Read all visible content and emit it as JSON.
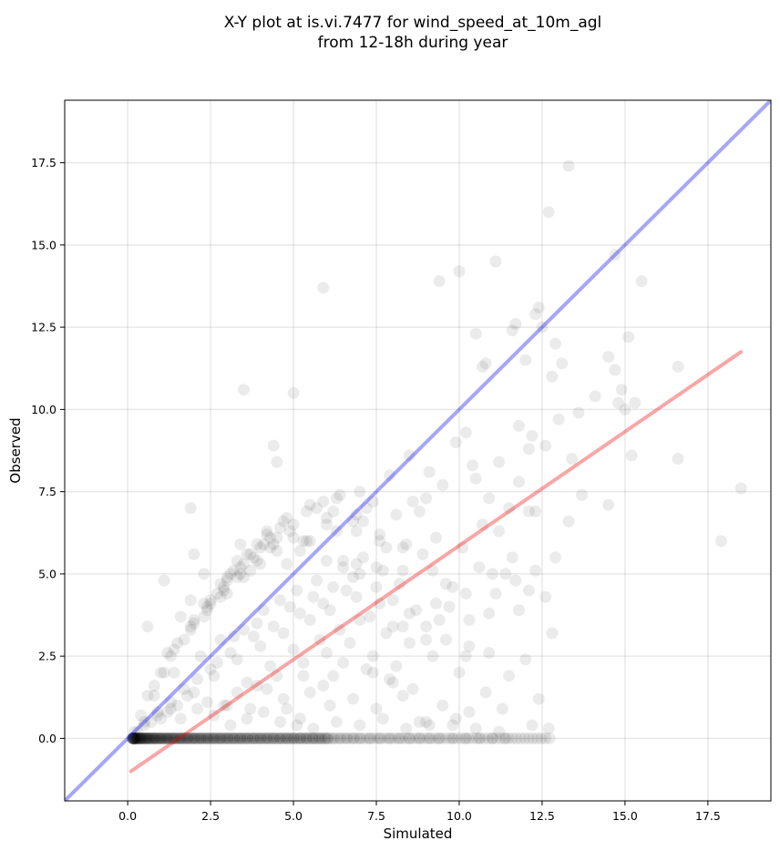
{
  "chart_data": {
    "type": "scatter",
    "title": "X-Y plot at is.vi.7477 for wind_speed_at_10m_agl",
    "subtitle": "from 12-18h during year",
    "xlabel": "Simulated",
    "ylabel": "Observed",
    "xlim": [
      -1.9,
      19.4
    ],
    "ylim": [
      -1.9,
      19.4
    ],
    "xticks": [
      "0.0",
      "2.5",
      "5.0",
      "7.5",
      "10.0",
      "12.5",
      "15.0",
      "17.5"
    ],
    "yticks": [
      "0.0",
      "2.5",
      "5.0",
      "7.5",
      "10.0",
      "12.5",
      "15.0",
      "17.5"
    ],
    "grid": true,
    "colors": {
      "points": "#000000",
      "identity_line": "#0000ee",
      "fit_line": "#ee0000"
    },
    "identity_line": {
      "x": [
        -1.9,
        19.4
      ],
      "y": [
        -1.9,
        19.4
      ]
    },
    "fit_line": {
      "x": [
        0.1,
        18.5
      ],
      "y": [
        -1.0,
        11.75
      ]
    },
    "points": {
      "x": [
        13.3,
        12.7,
        14.7,
        15.5,
        10.0,
        11.1,
        12.4,
        9.4,
        11.7,
        12.3,
        12.5,
        12.9,
        10.5,
        11.6,
        13.1,
        12.8,
        14.5,
        15.1,
        16.6,
        14.9,
        15.3,
        15.0,
        14.1,
        13.6,
        13.0,
        10.8,
        10.7,
        12.0,
        12.2,
        12.6,
        13.4,
        13.7,
        14.5,
        15.2,
        14.8,
        16.6,
        18.5,
        17.9,
        14.7,
        12.1,
        11.8,
        10.2,
        11.2,
        11.8,
        13.3,
        12.3,
        11.6,
        11.7,
        12.1,
        9.7,
        9.3,
        10.3,
        10.9,
        11.1,
        12.3,
        12.6,
        12.8,
        10.2,
        9.6,
        10.9,
        3.5,
        5.9,
        5.0,
        4.4,
        4.5,
        1.9,
        2.0,
        1.1,
        0.6,
        1.9,
        2.3,
        3.0,
        3.4,
        4.2,
        6.0,
        7.0,
        7.4,
        7.9,
        8.5,
        9.1,
        9.5,
        9.9,
        10.4,
        10.9,
        11.2,
        11.5,
        12.1,
        6.9,
        7.6,
        8.3,
        8.8,
        9.2,
        9.8,
        11.4,
        12.9,
        10.7,
        10.5,
        9.0,
        11.8,
        10.3,
        12.4,
        1.2,
        1.6,
        2.4,
        2.9,
        3.7,
        4.8,
        5.4,
        6.3,
        6.8,
        7.2,
        8.1,
        8.6,
        9.3,
        10.1,
        10.6,
        11.0,
        2.1,
        2.7,
        3.2,
        3.9,
        4.6,
        5.1,
        5.7,
        6.5,
        7.1,
        7.7,
        8.4,
        8.9,
        9.6,
        10.2,
        0.4,
        0.8,
        1.4,
        2.2,
        2.8,
        3.5,
        4.1,
        4.9,
        5.6,
        6.2,
        6.8,
        7.5,
        8.2,
        8.7,
        9.4,
        0.2,
        0.5,
        0.9,
        1.3,
        1.7,
        2.5,
        3.1,
        3.8,
        4.4,
        5.2,
        5.9,
        6.6,
        7.3,
        8.0,
        1.0,
        1.5,
        2.0,
        2.6,
        3.3,
        4.0,
        4.7,
        5.5,
        6.1,
        6.9,
        7.6,
        8.3,
        9.0,
        3.6,
        4.3,
        5.0,
        5.8,
        6.4,
        7.0,
        7.8,
        8.5,
        9.2,
        10.0,
        3.0,
        3.9,
        4.5,
        5.3,
        6.0,
        6.7,
        7.4,
        8.1,
        4.8,
        5.5,
        6.2,
        7.2,
        7.9,
        8.6,
        5.2,
        6.1,
        6.8,
        7.5,
        8.3,
        9.5,
        10.3,
        11.3,
        10.8,
        11.5,
        12.0,
        9.9,
        9.1,
        8.8,
        4.7,
        5.9,
        5.3,
        6.5,
        7.4,
        8.0,
        3.7,
        4.2,
        2.9,
        3.3,
        2.4,
        1.8,
        1.3,
        0.9,
        0.5,
        0.3,
        0.7,
        1.2,
        1.6,
        2.1,
        2.6,
        3.1,
        3.6,
        4.1,
        4.6,
        5.1,
        5.6,
        6.3,
        7.0,
        7.7,
        8.4,
        9.0,
        9.8,
        10.5,
        11.2,
        12.2,
        12.7,
        0.2,
        0.4,
        0.6,
        0.8,
        1.0,
        1.2,
        1.4,
        1.6,
        1.8,
        2.0,
        2.2,
        2.4,
        2.6,
        2.8,
        3.0,
        3.2,
        3.4,
        3.6,
        3.8,
        4.0,
        4.2,
        4.4,
        4.6,
        4.8,
        5.0,
        5.2,
        5.4,
        5.6,
        5.8,
        6.0,
        6.2,
        6.4,
        6.6,
        6.8,
        7.0,
        7.3,
        7.6,
        7.9,
        8.2,
        8.5,
        8.8,
        9.1,
        9.4,
        9.8,
        10.2,
        10.6,
        11.0,
        11.4,
        0.6,
        1.0,
        1.5,
        2.0,
        2.5,
        3.0,
        3.5,
        4.0,
        4.5,
        5.0,
        5.5,
        6.0,
        6.5,
        7.0,
        7.5,
        8.0,
        8.5,
        9.0,
        0.8,
        1.3,
        1.9,
        2.4,
        2.9,
        3.4,
        3.9,
        4.3,
        4.9,
        5.4,
        5.9,
        6.4,
        6.9,
        7.6,
        8.3,
        1.1,
        1.7,
        2.3,
        2.8,
        3.3,
        3.8,
        4.4,
        5.0,
        5.7,
        6.3,
        7.1,
        7.8,
        1.4,
        2.0,
        2.7,
        3.2,
        3.7,
        4.3,
        4.8,
        5.5,
        6.2,
        6.9,
        1.9,
        2.5,
        3.1,
        3.6,
        4.2,
        4.7,
        5.3,
        6.0,
        2.3,
        3.0,
        3.5,
        4.1,
        4.6,
        5.2,
        2.8,
        3.4,
        4.0,
        4.5,
        3.3,
        3.9
      ],
      "y": [
        17.4,
        16.0,
        14.7,
        13.9,
        14.2,
        14.5,
        13.1,
        13.9,
        12.6,
        12.9,
        12.5,
        12.0,
        12.3,
        12.4,
        11.4,
        11.0,
        11.6,
        12.2,
        11.3,
        10.6,
        10.2,
        10.0,
        10.4,
        9.9,
        9.7,
        11.4,
        11.3,
        11.5,
        9.2,
        8.9,
        8.5,
        7.4,
        7.1,
        8.6,
        10.2,
        8.5,
        7.6,
        6.0,
        11.2,
        8.8,
        9.5,
        9.3,
        8.4,
        7.8,
        6.6,
        6.9,
        5.5,
        4.8,
        4.5,
        4.0,
        4.1,
        3.6,
        3.8,
        4.4,
        5.1,
        4.3,
        3.2,
        2.5,
        3.0,
        2.6,
        10.6,
        13.7,
        10.5,
        8.9,
        8.4,
        7.0,
        5.6,
        4.8,
        3.4,
        4.2,
        5.0,
        4.8,
        5.9,
        6.3,
        6.7,
        7.5,
        7.2,
        8.0,
        8.6,
        8.1,
        7.7,
        9.0,
        8.3,
        7.3,
        6.3,
        7.0,
        6.9,
        5.3,
        6.2,
        5.8,
        6.9,
        5.1,
        4.6,
        5.0,
        5.5,
        6.5,
        7.9,
        7.3,
        3.9,
        2.8,
        1.2,
        2.6,
        3.7,
        4.0,
        4.5,
        5.1,
        5.3,
        6.0,
        6.3,
        6.6,
        7.0,
        6.8,
        7.2,
        6.1,
        5.8,
        5.2,
        5.0,
        1.8,
        2.3,
        3.1,
        3.5,
        4.2,
        4.5,
        4.8,
        5.2,
        5.5,
        5.1,
        5.9,
        5.6,
        4.7,
        4.4,
        0.7,
        1.3,
        2.0,
        2.5,
        3.0,
        3.3,
        3.9,
        4.0,
        4.3,
        4.6,
        4.9,
        5.2,
        4.7,
        3.9,
        3.6,
        0.2,
        0.5,
        0.8,
        1.1,
        1.5,
        2.1,
        2.6,
        3.1,
        3.4,
        3.8,
        4.1,
        4.5,
        3.7,
        3.4,
        0.6,
        1.0,
        1.4,
        1.9,
        2.4,
        2.8,
        3.2,
        3.6,
        3.9,
        4.3,
        4.1,
        3.4,
        3.0,
        1.7,
        2.2,
        2.7,
        3.0,
        3.3,
        3.6,
        3.2,
        2.9,
        2.5,
        2.0,
        1.0,
        1.6,
        1.9,
        2.3,
        2.6,
        2.9,
        2.5,
        2.2,
        0.9,
        1.4,
        1.9,
        2.1,
        1.8,
        1.5,
        0.6,
        1.0,
        1.2,
        0.9,
        1.3,
        1.0,
        0.8,
        0.9,
        1.4,
        1.9,
        2.4,
        0.6,
        0.4,
        0.5,
        1.2,
        1.6,
        1.9,
        2.3,
        2.0,
        1.7,
        0.9,
        1.5,
        1.0,
        1.4,
        1.1,
        1.3,
        0.9,
        0.7,
        0.4,
        0.2,
        0.5,
        0.8,
        0.6,
        0.9,
        0.7,
        0.4,
        0.6,
        0.8,
        0.5,
        0.4,
        0.3,
        0.5,
        0.4,
        0.6,
        0.3,
        0.5,
        0.4,
        0.3,
        0.2,
        0.4,
        0.3,
        0.0,
        0.0,
        0.0,
        0.0,
        0.0,
        0.0,
        0.0,
        0.0,
        0.0,
        0.0,
        0.0,
        0.0,
        0.0,
        0.0,
        0.0,
        0.0,
        0.0,
        0.0,
        0.0,
        0.0,
        0.0,
        0.0,
        0.0,
        0.0,
        0.0,
        0.0,
        0.0,
        0.0,
        0.0,
        0.0,
        0.0,
        0.0,
        0.0,
        0.0,
        0.0,
        0.0,
        0.0,
        0.0,
        0.0,
        0.0,
        0.0,
        0.0,
        0.0,
        0.0,
        0.0,
        0.0,
        0.0,
        0.0,
        1.3,
        2.0,
        2.9,
        3.5,
        4.1,
        4.4,
        4.9,
        5.3,
        5.7,
        6.1,
        6.0,
        6.5,
        5.4,
        5.0,
        4.6,
        4.2,
        3.8,
        3.4,
        1.6,
        2.5,
        3.3,
        3.9,
        4.6,
        5.0,
        5.4,
        5.8,
        6.3,
        6.9,
        7.2,
        7.4,
        6.8,
        6.0,
        5.1,
        2.0,
        3.0,
        3.7,
        4.3,
        4.9,
        5.5,
        5.9,
        6.5,
        7.0,
        7.3,
        6.6,
        5.8,
        2.7,
        3.6,
        4.4,
        5.1,
        5.6,
        6.1,
        6.7,
        7.1,
        6.9,
        6.3,
        3.4,
        4.2,
        5.0,
        5.6,
        6.2,
        6.6,
        6.0,
        5.4,
        4.1,
        4.9,
        5.3,
        5.9,
        6.4,
        5.7,
        4.7,
        5.2,
        5.8,
        6.1,
        5.4,
        5.9
      ]
    }
  }
}
